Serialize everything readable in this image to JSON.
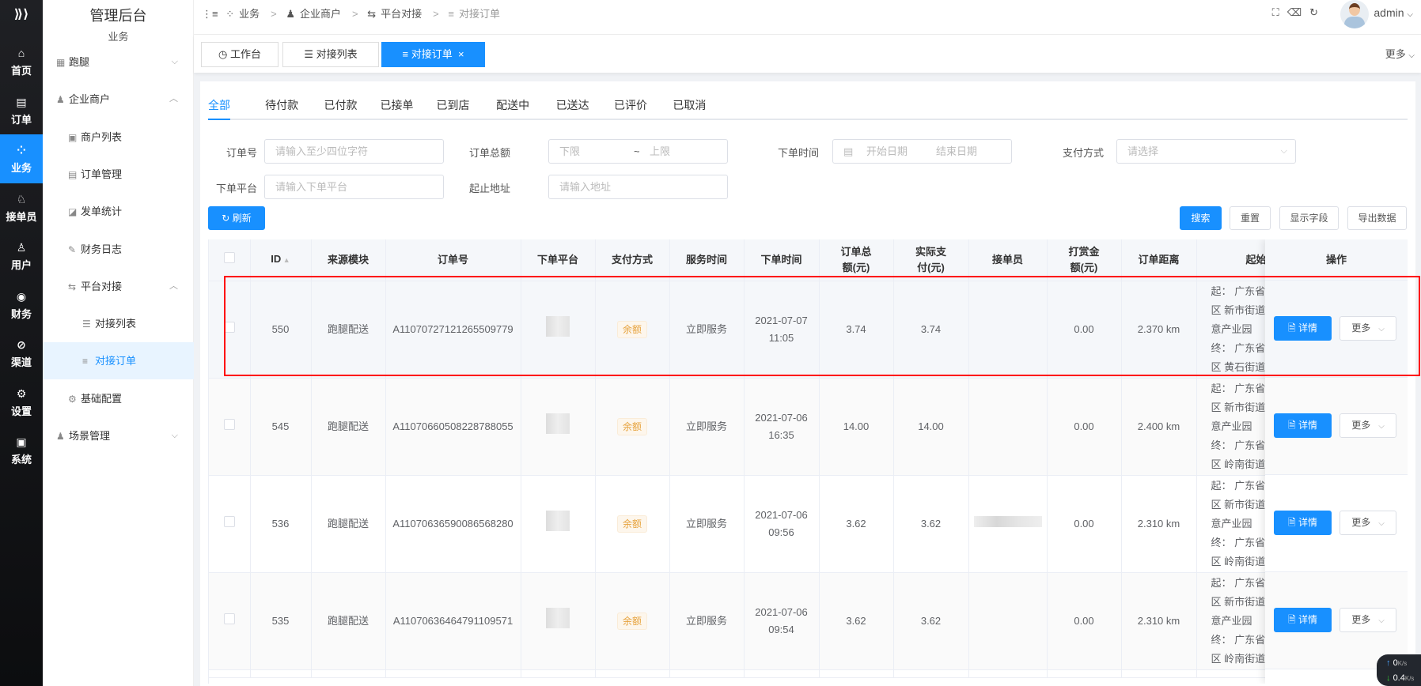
{
  "rail": [
    {
      "icon": "⌂",
      "label": "首页",
      "name": "home"
    },
    {
      "icon": "▤",
      "label": "订单",
      "name": "order"
    },
    {
      "icon": "⁘",
      "label": "业务",
      "name": "business",
      "active": true
    },
    {
      "icon": "♘",
      "label": "接单员",
      "name": "rider"
    },
    {
      "icon": "♙",
      "label": "用户",
      "name": "user"
    },
    {
      "icon": "◉",
      "label": "财务",
      "name": "finance"
    },
    {
      "icon": "⊘",
      "label": "渠道",
      "name": "channel"
    },
    {
      "icon": "⚙",
      "label": "设置",
      "name": "settings"
    },
    {
      "icon": "▣",
      "label": "系统",
      "name": "system"
    }
  ],
  "menu": {
    "title": "管理后台",
    "section": "业务",
    "items": [
      {
        "label": "跑腿",
        "icon": "▦",
        "level": 1,
        "arrow": "⌵"
      },
      {
        "label": "企业商户",
        "icon": "♟",
        "level": 1,
        "arrow": "︿"
      },
      {
        "label": "商户列表",
        "icon": "▣",
        "level": 2
      },
      {
        "label": "订单管理",
        "icon": "▤",
        "level": 2
      },
      {
        "label": "发单统计",
        "icon": "◪",
        "level": 2
      },
      {
        "label": "财务日志",
        "icon": "✎",
        "level": 2
      },
      {
        "label": "平台对接",
        "icon": "⇆",
        "level": 2,
        "arrow": "︿"
      },
      {
        "label": "对接列表",
        "icon": "☰",
        "level": 3
      },
      {
        "label": "对接订单",
        "icon": "≡",
        "level": 3,
        "active": true
      },
      {
        "label": "基础配置",
        "icon": "⚙",
        "level": 2
      },
      {
        "label": "场景管理",
        "icon": "♟",
        "level": 1,
        "arrow": "⌵"
      }
    ]
  },
  "header": {
    "breadcrumb": [
      "业务",
      "企业商户",
      "平台对接",
      "对接订单"
    ],
    "user": "admin",
    "more": "更多"
  },
  "view_tabs": [
    {
      "label": "工作台",
      "icon": "◷"
    },
    {
      "label": "对接列表",
      "icon": "☰"
    },
    {
      "label": "对接订单",
      "icon": "≡",
      "active": true,
      "close": "×"
    }
  ],
  "status_tabs": [
    "全部",
    "待付款",
    "已付款",
    "已接单",
    "已到店",
    "配送中",
    "已送达",
    "已评价",
    "已取消"
  ],
  "filters": {
    "order_no": {
      "label": "订单号",
      "placeholder": "请输入至少四位字符"
    },
    "total": {
      "label": "订单总额",
      "min": "下限",
      "sep": "~",
      "max": "上限"
    },
    "time": {
      "label": "下单时间",
      "start": "开始日期",
      "end": "结束日期"
    },
    "pay": {
      "label": "支付方式",
      "placeholder": "请选择"
    },
    "platform": {
      "label": "下单平台",
      "placeholder": "请输入下单平台"
    },
    "address": {
      "label": "起止地址",
      "placeholder": "请输入地址"
    }
  },
  "buttons": {
    "refresh": "刷新",
    "search": "搜索",
    "reset": "重置",
    "fields": "显示字段",
    "export": "导出数据",
    "detail": "详情",
    "more": "更多"
  },
  "table": {
    "columns": [
      "",
      "ID",
      "来源模块",
      "订单号",
      "下单平台",
      "支付方式",
      "服务时间",
      "下单时间",
      "订单总额(元)",
      "实际支付(元)",
      "接单员",
      "打赏金额(元)",
      "订单距离",
      "起始地址",
      "操作"
    ],
    "rows": [
      {
        "id": "550",
        "source": "跑腿配送",
        "order_no": "A11070727121265509779",
        "pay": "余额",
        "service": "立即服务",
        "date": "2021-07-07",
        "time": "11:05",
        "total": "3.74",
        "paid": "3.74",
        "rider_blurred": false,
        "tip": "0.00",
        "distance": "2.370 km",
        "addr": [
          "起：  广东省 广州",
          "区 新市街道 机场",
          "意产业园",
          "终：  广东省 广州",
          "区 黄石街道 百信"
        ]
      },
      {
        "id": "545",
        "source": "跑腿配送",
        "order_no": "A11070660508228788055",
        "pay": "余额",
        "service": "立即服务",
        "date": "2021-07-06",
        "time": "16:35",
        "total": "14.00",
        "paid": "14.00",
        "rider_blurred": false,
        "tip": "0.00",
        "distance": "2.400 km",
        "addr": [
          "起：  广东省 广州",
          "区 新市街道 机场",
          "意产业园",
          "终：  广东省 广州",
          "区 岭南街道 sss"
        ]
      },
      {
        "id": "536",
        "source": "跑腿配送",
        "order_no": "A11070636590086568280",
        "pay": "余额",
        "service": "立即服务",
        "date": "2021-07-06",
        "time": "09:56",
        "total": "3.62",
        "paid": "3.62",
        "rider_blurred": true,
        "tip": "0.00",
        "distance": "2.310 km",
        "addr": [
          "起：  广东省 广州",
          "区 新市街道 机场",
          "意产业园",
          "终：  广东省 广州",
          "区 岭南街道 sss"
        ]
      },
      {
        "id": "535",
        "source": "跑腿配送",
        "order_no": "A11070636464791109571",
        "pay": "余额",
        "service": "立即服务",
        "date": "2021-07-06",
        "time": "09:54",
        "total": "3.62",
        "paid": "3.62",
        "rider_blurred": false,
        "tip": "0.00",
        "distance": "2.310 km",
        "addr": [
          "起：  广东省 广州",
          "区 新市街道 机场",
          "意产业园",
          "终：  广东省 广州",
          "区 岭南街道 sss"
        ]
      }
    ]
  },
  "net_speed": {
    "up": "0",
    "down": "0.4",
    "unit": "K/s"
  },
  "colors": {
    "primary": "#1890ff",
    "rail": "#1f2024",
    "highlight_box": "#ff0000",
    "tag": "#e6a23c"
  }
}
